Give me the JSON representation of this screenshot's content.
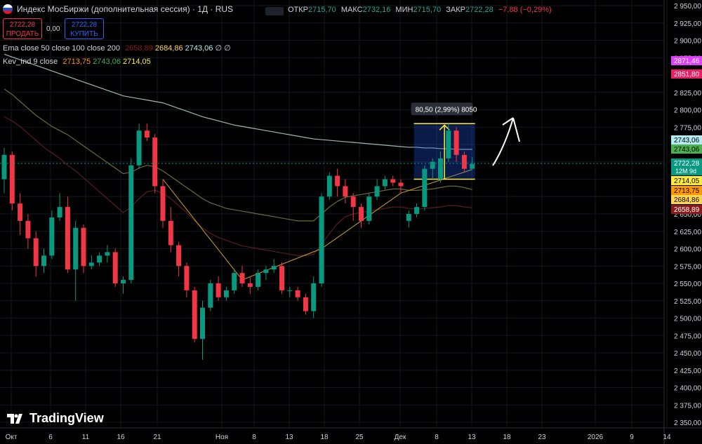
{
  "header": {
    "title": "Индекс МосБиржи (дополнительная сессия) · 1Д · RUS",
    "ohlc": {
      "open_label": "ОТКР",
      "open": "2715,70",
      "high_label": "МАКС",
      "high": "2732,16",
      "low_label": "МИН",
      "low": "2715,70",
      "close_label": "ЗАКР",
      "close": "2722,28",
      "change": "−7,88 (−0,29%)"
    }
  },
  "trade": {
    "sell_price": "2722,28",
    "sell_label": "ПРОДАТЬ",
    "spread": "0,00",
    "buy_price": "2722,28",
    "buy_label": "КУПИТЬ"
  },
  "indicators": [
    {
      "name": "Ema close 50 close 100 close 200",
      "values": [
        "2658,89",
        "2684,86",
        "2743,06",
        "∅",
        "∅"
      ]
    },
    {
      "name": "Kev_Ind 9 close",
      "values": [
        "2713,75",
        "2743,06",
        "2714,05"
      ]
    }
  ],
  "measure": {
    "label": "80,50 (2,99%) 8050"
  },
  "price_axis": [
    "2 950,00",
    "2 925,00",
    "2 900,00",
    "2 875,00",
    "2 825,00",
    "2 800,00",
    "2 775,00",
    "2 650,00",
    "2 625,00",
    "2 600,00",
    "2 575,00",
    "2 550,00",
    "2 525,00",
    "2 500,00",
    "2 475,00",
    "2 450,00",
    "2 425,00",
    "2 400,00",
    "2 375,00",
    "2 350,00"
  ],
  "price_tags": [
    {
      "value": "2871,46",
      "color": "#e040fb"
    },
    {
      "value": "2851,80",
      "color": "#e91e63"
    },
    {
      "value": "2743,06",
      "color": "#b2ebf2",
      "text_color": "#000000"
    },
    {
      "value": "2743,06",
      "color": "#4caf50",
      "text_color": "#000000"
    },
    {
      "value": "2722,28",
      "color": "#089981",
      "sub": "12M 9d"
    },
    {
      "value": "2714,05",
      "color": "#ffeb3b",
      "text_color": "#000000"
    },
    {
      "value": "2713,75",
      "color": "#ff9800",
      "text_color": "#000000"
    },
    {
      "value": "2684,86",
      "color": "#ffd54f",
      "text_color": "#000000"
    },
    {
      "value": "2658,89",
      "color": "#8b1a1a"
    }
  ],
  "time_axis": [
    "Окт",
    "6",
    "11",
    "16",
    "21",
    "Ноя",
    "8",
    "13",
    "18",
    "25",
    "Дек",
    "8",
    "13",
    "18",
    "23",
    "2026",
    "9",
    "14"
  ],
  "brand": "TradingView",
  "chart_data": {
    "type": "candlestick",
    "ylim": [
      2350,
      2950
    ],
    "candles": [
      {
        "o": 2700,
        "h": 2745,
        "l": 2680,
        "c": 2735
      },
      {
        "o": 2735,
        "h": 2740,
        "l": 2655,
        "c": 2665
      },
      {
        "o": 2665,
        "h": 2680,
        "l": 2620,
        "c": 2640
      },
      {
        "o": 2640,
        "h": 2650,
        "l": 2600,
        "c": 2615
      },
      {
        "o": 2615,
        "h": 2625,
        "l": 2560,
        "c": 2575
      },
      {
        "o": 2575,
        "h": 2600,
        "l": 2565,
        "c": 2590
      },
      {
        "o": 2590,
        "h": 2655,
        "l": 2585,
        "c": 2645
      },
      {
        "o": 2645,
        "h": 2680,
        "l": 2640,
        "c": 2660
      },
      {
        "o": 2660,
        "h": 2675,
        "l": 2565,
        "c": 2570
      },
      {
        "o": 2570,
        "h": 2640,
        "l": 2525,
        "c": 2630
      },
      {
        "o": 2630,
        "h": 2635,
        "l": 2565,
        "c": 2575
      },
      {
        "o": 2575,
        "h": 2590,
        "l": 2570,
        "c": 2580
      },
      {
        "o": 2580,
        "h": 2595,
        "l": 2575,
        "c": 2590
      },
      {
        "o": 2590,
        "h": 2605,
        "l": 2580,
        "c": 2595
      },
      {
        "o": 2595,
        "h": 2600,
        "l": 2545,
        "c": 2550
      },
      {
        "o": 2550,
        "h": 2560,
        "l": 2535,
        "c": 2555
      },
      {
        "o": 2555,
        "h": 2730,
        "l": 2550,
        "c": 2720
      },
      {
        "o": 2720,
        "h": 2780,
        "l": 2715,
        "c": 2770
      },
      {
        "o": 2770,
        "h": 2780,
        "l": 2755,
        "c": 2760
      },
      {
        "o": 2760,
        "h": 2765,
        "l": 2680,
        "c": 2690
      },
      {
        "o": 2690,
        "h": 2700,
        "l": 2630,
        "c": 2640
      },
      {
        "o": 2640,
        "h": 2660,
        "l": 2595,
        "c": 2605
      },
      {
        "o": 2605,
        "h": 2610,
        "l": 2560,
        "c": 2575
      },
      {
        "o": 2575,
        "h": 2580,
        "l": 2530,
        "c": 2540
      },
      {
        "o": 2540,
        "h": 2545,
        "l": 2465,
        "c": 2470
      },
      {
        "o": 2470,
        "h": 2525,
        "l": 2440,
        "c": 2515
      },
      {
        "o": 2515,
        "h": 2555,
        "l": 2510,
        "c": 2550
      },
      {
        "o": 2550,
        "h": 2560,
        "l": 2525,
        "c": 2530
      },
      {
        "o": 2530,
        "h": 2545,
        "l": 2525,
        "c": 2540
      },
      {
        "o": 2540,
        "h": 2570,
        "l": 2535,
        "c": 2565
      },
      {
        "o": 2565,
        "h": 2575,
        "l": 2545,
        "c": 2550
      },
      {
        "o": 2550,
        "h": 2560,
        "l": 2535,
        "c": 2545
      },
      {
        "o": 2545,
        "h": 2570,
        "l": 2540,
        "c": 2565
      },
      {
        "o": 2565,
        "h": 2575,
        "l": 2555,
        "c": 2570
      },
      {
        "o": 2570,
        "h": 2585,
        "l": 2565,
        "c": 2575
      },
      {
        "o": 2575,
        "h": 2580,
        "l": 2535,
        "c": 2540
      },
      {
        "o": 2540,
        "h": 2545,
        "l": 2530,
        "c": 2540
      },
      {
        "o": 2540,
        "h": 2545,
        "l": 2525,
        "c": 2530
      },
      {
        "o": 2530,
        "h": 2535,
        "l": 2505,
        "c": 2510
      },
      {
        "o": 2510,
        "h": 2560,
        "l": 2500,
        "c": 2550
      },
      {
        "o": 2550,
        "h": 2680,
        "l": 2545,
        "c": 2675
      },
      {
        "o": 2675,
        "h": 2710,
        "l": 2670,
        "c": 2705
      },
      {
        "o": 2705,
        "h": 2715,
        "l": 2675,
        "c": 2690
      },
      {
        "o": 2690,
        "h": 2700,
        "l": 2665,
        "c": 2675
      },
      {
        "o": 2675,
        "h": 2680,
        "l": 2640,
        "c": 2660
      },
      {
        "o": 2660,
        "h": 2665,
        "l": 2630,
        "c": 2640
      },
      {
        "o": 2640,
        "h": 2680,
        "l": 2635,
        "c": 2675
      },
      {
        "o": 2675,
        "h": 2700,
        "l": 2670,
        "c": 2690
      },
      {
        "o": 2690,
        "h": 2705,
        "l": 2685,
        "c": 2700
      },
      {
        "o": 2700,
        "h": 2705,
        "l": 2690,
        "c": 2695
      },
      {
        "o": 2695,
        "h": 2700,
        "l": 2680,
        "c": 2690
      },
      {
        "o": 2640,
        "h": 2655,
        "l": 2630,
        "c": 2650
      },
      {
        "o": 2650,
        "h": 2665,
        "l": 2645,
        "c": 2660
      },
      {
        "o": 2660,
        "h": 2720,
        "l": 2655,
        "c": 2715
      },
      {
        "o": 2715,
        "h": 2730,
        "l": 2700,
        "c": 2725
      },
      {
        "o": 2700,
        "h": 2740,
        "l": 2695,
        "c": 2730
      },
      {
        "o": 2730,
        "h": 2780,
        "l": 2725,
        "c": 2770
      },
      {
        "o": 2770,
        "h": 2775,
        "l": 2725,
        "c": 2735
      },
      {
        "o": 2735,
        "h": 2740,
        "l": 2710,
        "c": 2715
      },
      {
        "o": 2715,
        "h": 2732,
        "l": 2715,
        "c": 2722
      }
    ],
    "ema200": [
      2880,
      2876,
      2872,
      2868,
      2864,
      2860,
      2856,
      2852,
      2848,
      2844,
      2840,
      2836,
      2832,
      2828,
      2824,
      2820,
      2818,
      2816,
      2814,
      2812,
      2810,
      2806,
      2802,
      2798,
      2794,
      2790,
      2787,
      2784,
      2781,
      2778,
      2776,
      2774,
      2772,
      2770,
      2768,
      2766,
      2764,
      2762,
      2760,
      2758,
      2757,
      2756,
      2755,
      2754,
      2753,
      2752,
      2751,
      2750,
      2749,
      2748,
      2747,
      2746,
      2746,
      2745,
      2745,
      2744,
      2744,
      2743,
      2743,
      2743
    ],
    "ema100": [
      2830,
      2822,
      2812,
      2802,
      2792,
      2784,
      2776,
      2770,
      2764,
      2756,
      2748,
      2740,
      2732,
      2724,
      2716,
      2708,
      2710,
      2716,
      2720,
      2718,
      2712,
      2704,
      2696,
      2688,
      2680,
      2672,
      2666,
      2662,
      2658,
      2656,
      2654,
      2652,
      2650,
      2648,
      2646,
      2644,
      2642,
      2640,
      2640,
      2640,
      2650,
      2660,
      2668,
      2674,
      2676,
      2678,
      2680,
      2682,
      2684,
      2686,
      2686,
      2684,
      2684,
      2685,
      2686,
      2688,
      2690,
      2690,
      2688,
      2685
    ],
    "ema50": [
      2790,
      2784,
      2776,
      2766,
      2756,
      2746,
      2738,
      2730,
      2720,
      2712,
      2702,
      2692,
      2682,
      2672,
      2662,
      2652,
      2660,
      2672,
      2682,
      2684,
      2680,
      2672,
      2662,
      2652,
      2640,
      2630,
      2622,
      2616,
      2612,
      2608,
      2604,
      2602,
      2600,
      2598,
      2596,
      2594,
      2592,
      2590,
      2590,
      2592,
      2606,
      2622,
      2636,
      2646,
      2650,
      2652,
      2654,
      2656,
      2658,
      2660,
      2660,
      2658,
      2657,
      2658,
      2659,
      2660,
      2662,
      2662,
      2660,
      2659
    ]
  }
}
